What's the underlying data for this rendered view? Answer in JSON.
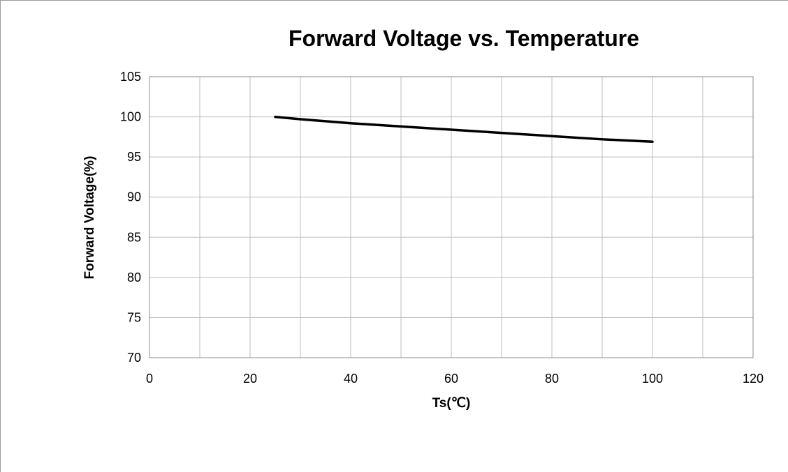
{
  "chart_data": {
    "type": "line",
    "title": "Forward Voltage vs. Temperature",
    "xlabel": "Ts(℃)",
    "ylabel": "Forward Voltage(%)",
    "xlim": [
      0,
      120
    ],
    "ylim": [
      70,
      105
    ],
    "xticks": [
      "0",
      "20",
      "40",
      "60",
      "80",
      "100",
      "120"
    ],
    "yticks": [
      "70",
      "75",
      "80",
      "85",
      "90",
      "95",
      "100",
      "105"
    ],
    "xtick_step": 20,
    "ytick_step": 5,
    "grid": true,
    "legend": "none",
    "series": [
      {
        "x": [
          25,
          30,
          40,
          50,
          60,
          70,
          80,
          90,
          100
        ],
        "y": [
          100,
          99.7,
          99.2,
          98.8,
          98.4,
          98.0,
          97.6,
          97.2,
          96.9
        ],
        "color": "#000000"
      }
    ]
  }
}
